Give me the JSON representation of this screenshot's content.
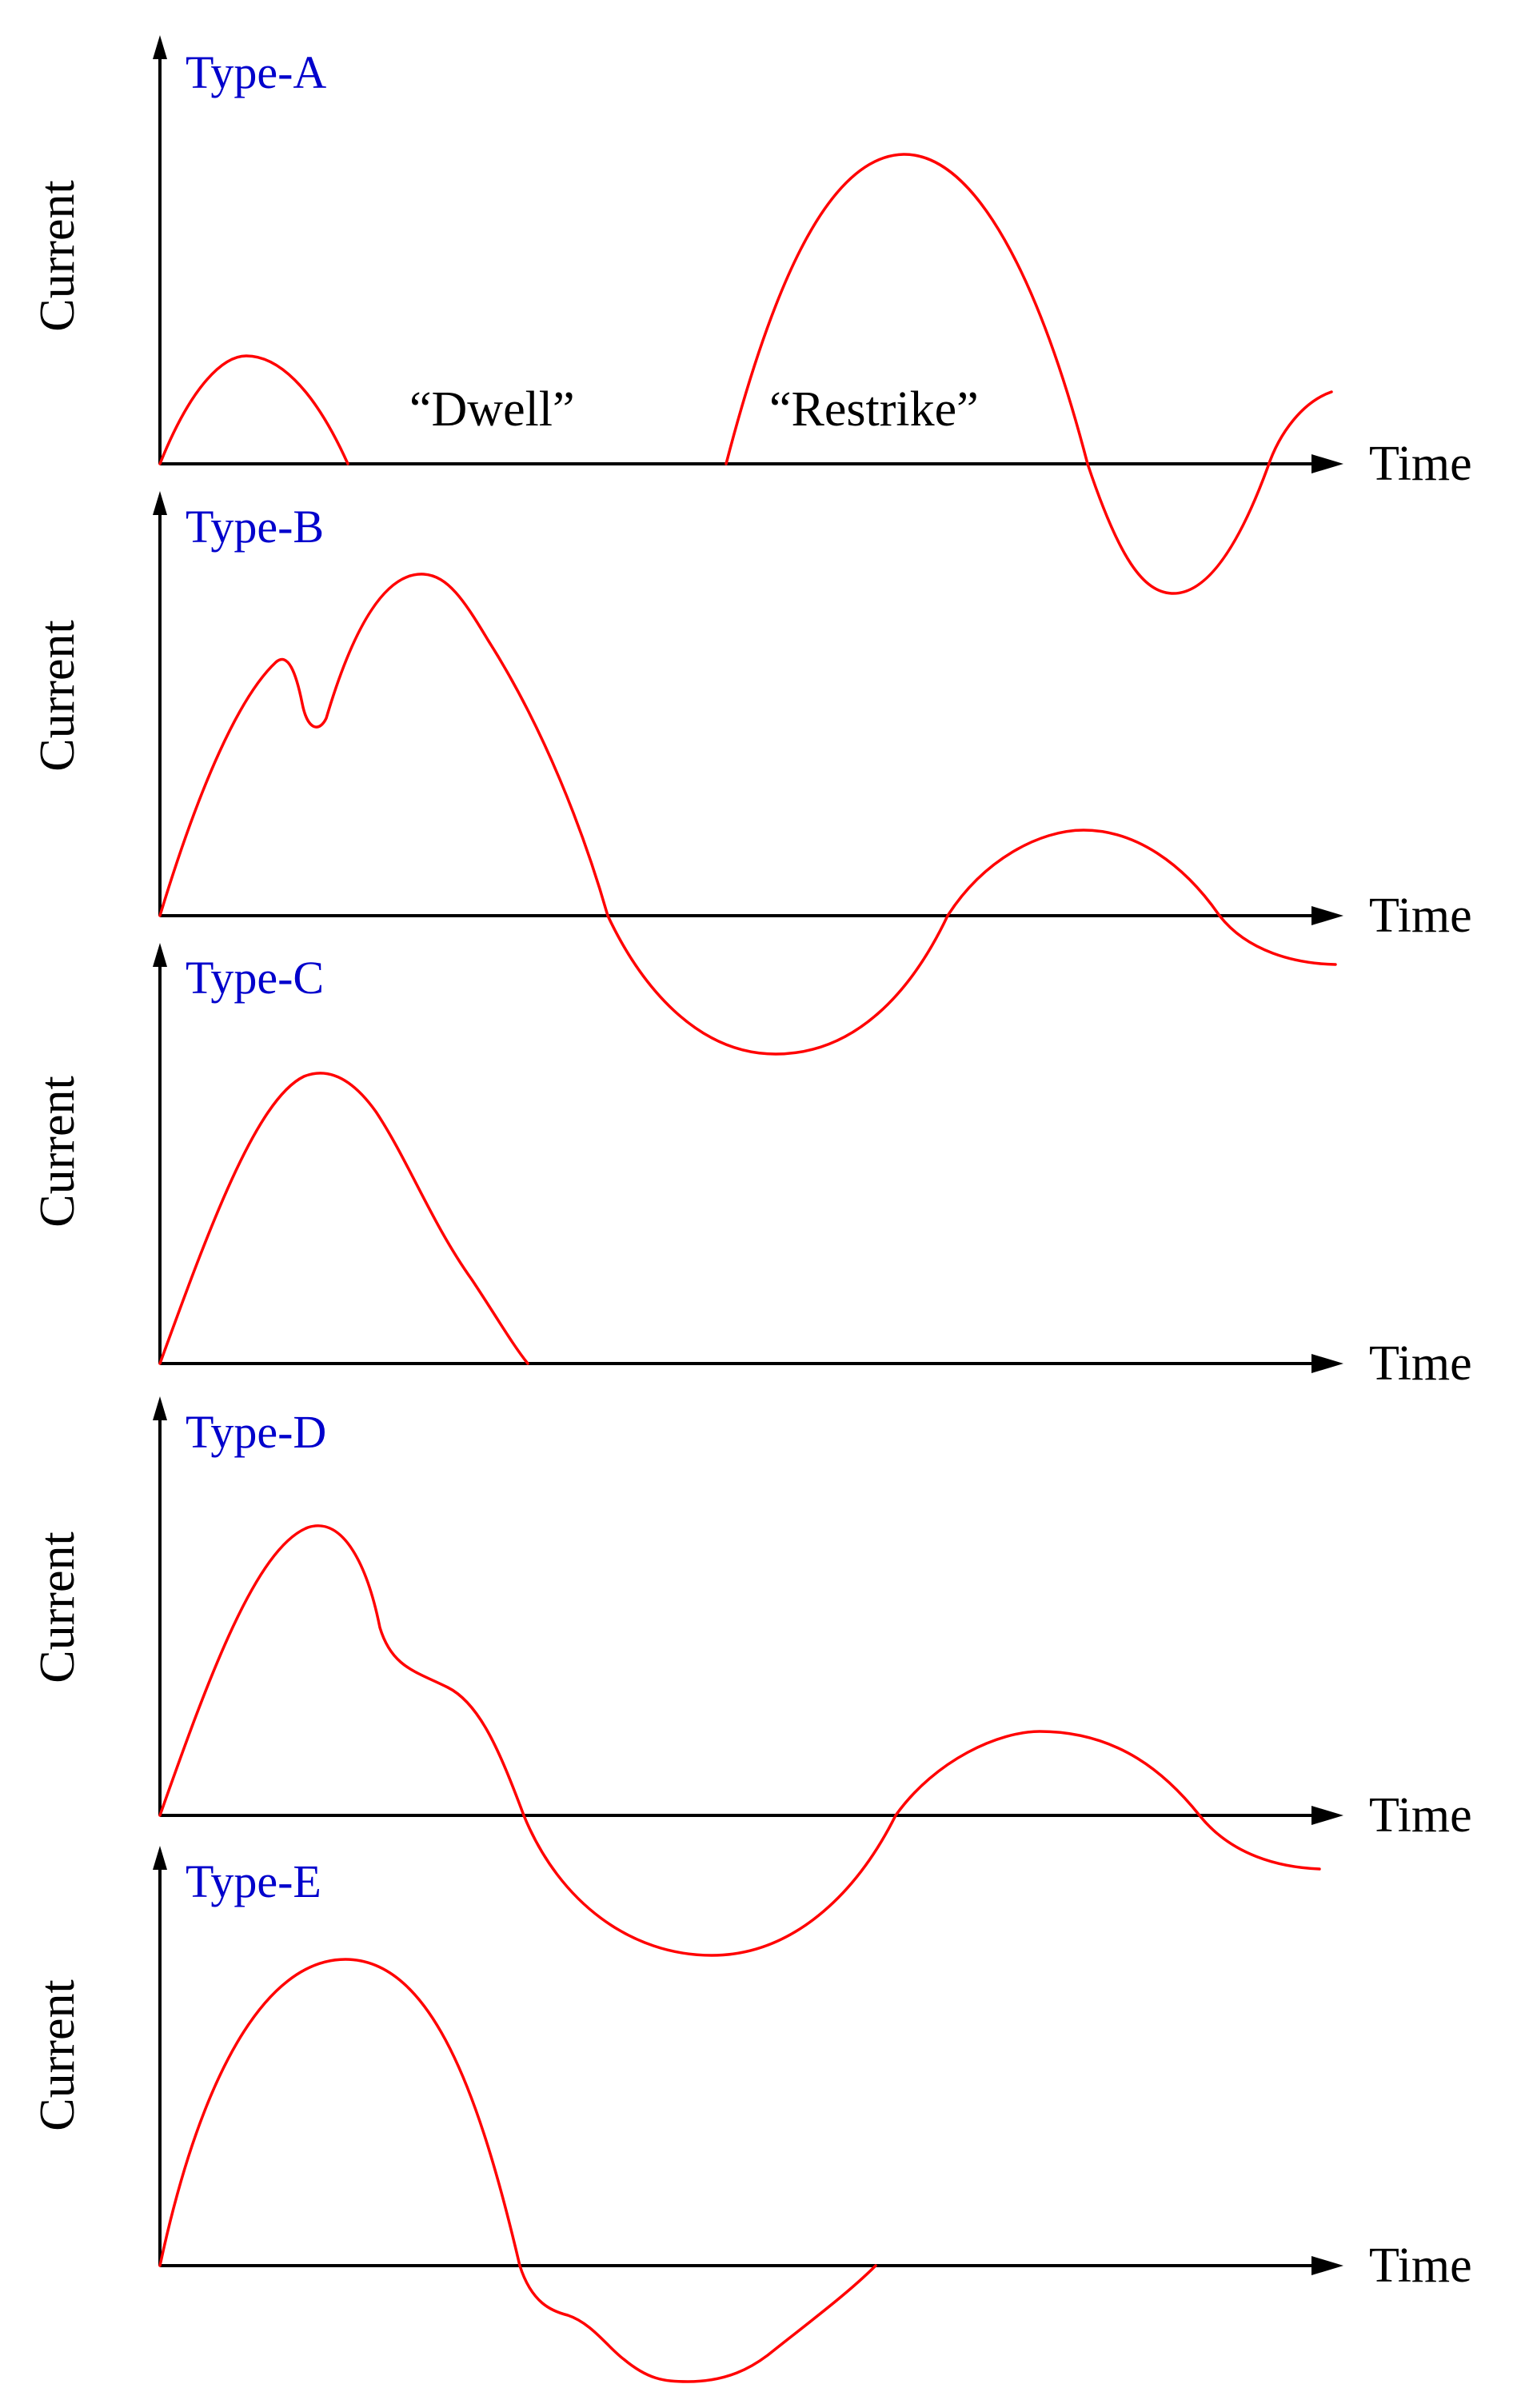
{
  "colors": {
    "curve": "#ff0000",
    "type_label": "#0000cc",
    "axis": "#000000",
    "background": "#ffffff"
  },
  "panels": [
    {
      "id": "type-a",
      "type_label": "Type-A",
      "ylabel": "Current",
      "xlabel": "Time",
      "annotations": [
        {
          "id": "dwell",
          "text": "“Dwell”"
        },
        {
          "id": "restrike",
          "text": "“Restrike”"
        }
      ]
    },
    {
      "id": "type-b",
      "type_label": "Type-B",
      "ylabel": "Current",
      "xlabel": "Time",
      "annotations": []
    },
    {
      "id": "type-c",
      "type_label": "Type-C",
      "ylabel": "Current",
      "xlabel": "Time",
      "annotations": []
    },
    {
      "id": "type-d",
      "type_label": "Type-D",
      "ylabel": "Current",
      "xlabel": "Time",
      "annotations": []
    },
    {
      "id": "type-e",
      "type_label": "Type-E",
      "ylabel": "Current",
      "xlabel": "Time",
      "annotations": []
    }
  ]
}
